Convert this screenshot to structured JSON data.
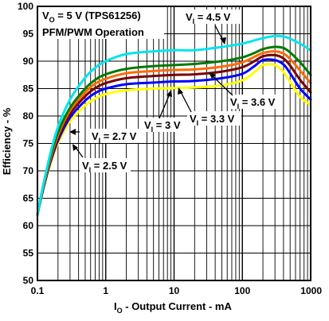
{
  "chart_data": {
    "type": "line",
    "title_line1": "V",
    "title_line1_sub": "O",
    "title_line1_rest": " = 5 V (TPS61256)",
    "title_line2": "PFM/PWM Operation",
    "xlabel_main": "I",
    "xlabel_sub": "O",
    "xlabel_rest": " - Output Current - mA",
    "ylabel": "Efficiency - %",
    "x_scale": "log",
    "xlim": [
      0.1,
      1000
    ],
    "ylim": [
      50,
      100
    ],
    "x_ticks": [
      0.1,
      1,
      10,
      100,
      1000
    ],
    "x_tick_labels": [
      "0.1",
      "1",
      "10",
      "100",
      "1000"
    ],
    "y_ticks": [
      50,
      55,
      60,
      65,
      70,
      75,
      80,
      85,
      90,
      95,
      100
    ],
    "y_tick_labels": [
      "50",
      "55",
      "60",
      "65",
      "70",
      "75",
      "80",
      "85",
      "90",
      "95",
      "100"
    ],
    "grid": true,
    "x": [
      0.1,
      0.12,
      0.15,
      0.2,
      0.3,
      0.5,
      0.7,
      1,
      2,
      5,
      10,
      20,
      50,
      100,
      150,
      200,
      300,
      400,
      500,
      700,
      1000
    ],
    "series": [
      {
        "name": "VI = 4.5 V",
        "color": "#00e5ee",
        "values": [
          62,
          67,
          72.5,
          78,
          83,
          87,
          88.8,
          90,
          91.3,
          91.8,
          92,
          92,
          92.6,
          93.2,
          93.8,
          94.2,
          94.6,
          94.5,
          94.1,
          93.2,
          92
        ]
      },
      {
        "name": "VI = 3.6 V",
        "color": "#007a00",
        "values": [
          62,
          67,
          72,
          77,
          81.5,
          85,
          86.6,
          87.6,
          88.6,
          89.1,
          89.3,
          89.5,
          90,
          90.7,
          91.5,
          92.2,
          92.6,
          92.4,
          91.6,
          89.8,
          87.5
        ]
      },
      {
        "name": "VI = 3.3 V",
        "color": "#ff6a00",
        "values": [
          62,
          66.8,
          71.6,
          76.5,
          81,
          84.3,
          85.9,
          86.8,
          87.8,
          88.2,
          88.4,
          88.5,
          89,
          89.8,
          90.8,
          91.5,
          91.8,
          91.4,
          90.4,
          88.3,
          86
        ]
      },
      {
        "name": "VI = 3 V",
        "color": "#7a0000",
        "values": [
          62,
          66.6,
          71.3,
          76,
          80.4,
          83.6,
          85.1,
          86,
          86.9,
          87.3,
          87.5,
          87.6,
          88.1,
          88.9,
          90,
          90.9,
          91.1,
          90.5,
          89.2,
          86.6,
          84.3
        ]
      },
      {
        "name": "VI = 2.7 V",
        "color": "#0000ff",
        "values": [
          62,
          66.4,
          71,
          75.5,
          79.7,
          82.8,
          84.2,
          85,
          85.8,
          86.1,
          86.3,
          86.4,
          86.9,
          87.7,
          89.1,
          90.2,
          90.2,
          89.4,
          87.8,
          85,
          83
        ]
      },
      {
        "name": "VI = 2.5 V",
        "color": "#ffff00",
        "values": [
          62,
          66.2,
          70.7,
          75,
          79,
          81.9,
          83.2,
          84,
          84.7,
          85,
          85.1,
          85.2,
          85.6,
          86.5,
          88,
          89.3,
          89.3,
          88,
          86.2,
          83.5,
          82
        ]
      }
    ],
    "annotations": [
      {
        "main": "V",
        "sub": "I",
        "rest": " = 4.5 V"
      },
      {
        "main": "V",
        "sub": "I",
        "rest": " = 3.6 V"
      },
      {
        "main": "V",
        "sub": "I",
        "rest": " = 3.3 V"
      },
      {
        "main": "V",
        "sub": "I",
        "rest": " = 3 V"
      },
      {
        "main": "V",
        "sub": "I",
        "rest": " = 2.7 V"
      },
      {
        "main": "V",
        "sub": "I",
        "rest": " = 2.5 V"
      }
    ]
  }
}
